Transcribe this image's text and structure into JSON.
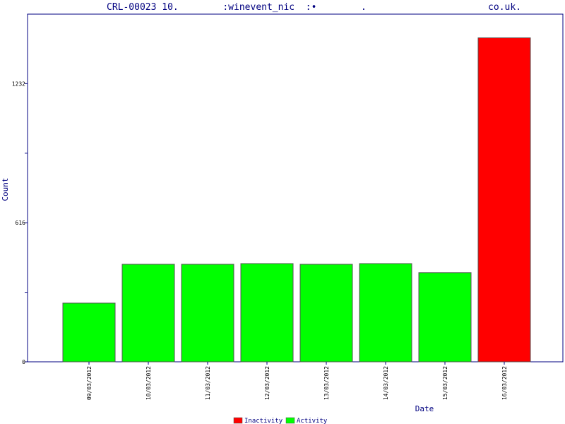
{
  "chart_data": {
    "type": "bar",
    "title": "CRL-00023 10.        :winevent_nic  :•        .                      co.uk.",
    "xlabel": "Date",
    "ylabel": "Count",
    "ylim": [
      0,
      1540
    ],
    "y_ticks": [
      0,
      616,
      1232
    ],
    "y_tick_labels": [
      "0",
      "616",
      "1232"
    ],
    "categories": [
      "09/03/2012",
      "10/03/2012",
      "11/03/2012",
      "12/03/2012",
      "13/03/2012",
      "14/03/2012",
      "15/03/2012",
      "16/03/2012"
    ],
    "values": [
      260,
      432,
      432,
      435,
      432,
      435,
      395,
      1435
    ],
    "bar_status": [
      "Activity",
      "Activity",
      "Activity",
      "Activity",
      "Activity",
      "Activity",
      "Activity",
      "Inactivity"
    ],
    "legend": [
      {
        "label": "Inactivity",
        "color": "#ff0000"
      },
      {
        "label": "Activity",
        "color": "#00ff00"
      }
    ],
    "legend_position": "bottom-center",
    "grid": false,
    "colors": {
      "axis": "#000080",
      "title": "#000080",
      "bar_outline": "#555555"
    }
  }
}
